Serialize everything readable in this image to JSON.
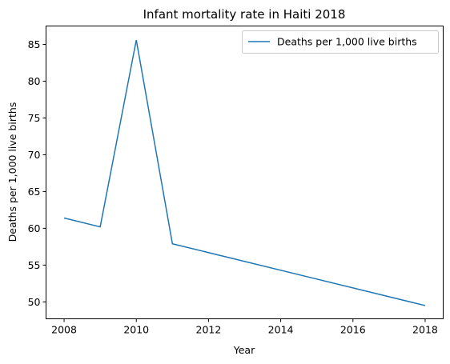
{
  "chart_data": {
    "type": "line",
    "title": "Infant mortality rate in Haiti 2018",
    "xlabel": "Year",
    "ylabel": "Deaths per 1,000 live births",
    "xlim": [
      2007.5,
      2018.5
    ],
    "ylim": [
      47.7,
      87.5
    ],
    "xticks": [
      2008,
      2010,
      2012,
      2014,
      2016,
      2018
    ],
    "yticks": [
      50,
      55,
      60,
      65,
      70,
      75,
      80,
      85
    ],
    "grid": false,
    "legend_position": "upper right",
    "series": [
      {
        "name": "Deaths per 1,000 live births",
        "color": "#1f77b4",
        "x": [
          2008,
          2009,
          2010,
          2011,
          2018
        ],
        "y": [
          61.4,
          60.2,
          85.6,
          57.9,
          49.5
        ]
      }
    ]
  }
}
